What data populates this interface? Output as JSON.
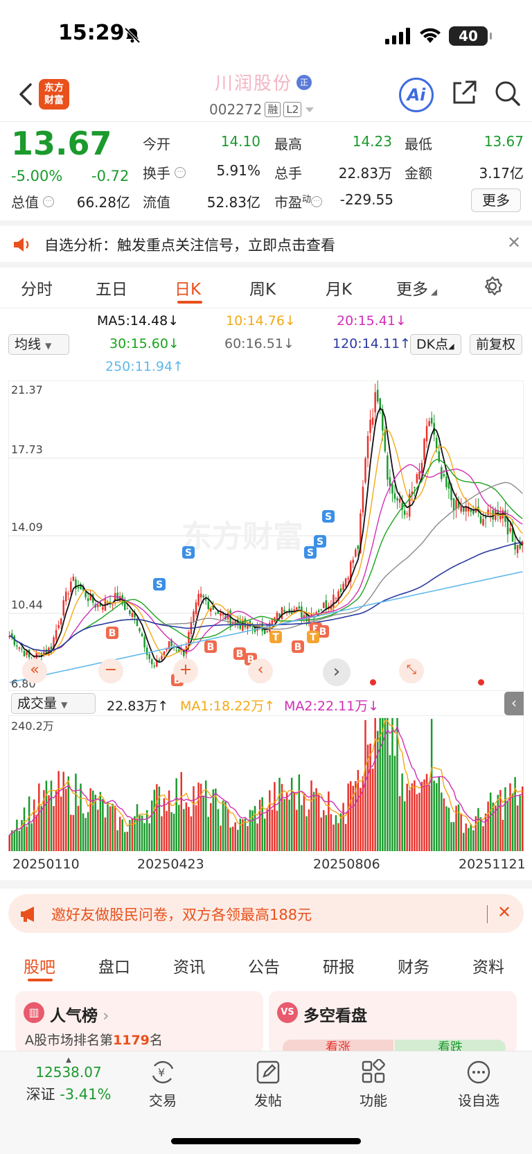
{
  "status_bar": {
    "time": "15:29",
    "battery": "40"
  },
  "header": {
    "stock_name": "川润股份",
    "tag": "正",
    "code": "002272",
    "badge_margin": "融",
    "badge_level": "L2",
    "logo_line1": "东方",
    "logo_line2": "财富",
    "ai_label": "Ai"
  },
  "quote": {
    "price": "13.67",
    "change_pct": "-5.00%",
    "change": "-0.72",
    "open_label": "今开",
    "open": "14.10",
    "high_label": "最高",
    "high": "14.23",
    "low_label": "最低",
    "low": "13.67",
    "turnover_label": "换手",
    "turnover": "5.91%",
    "volume_label": "总手",
    "volume": "22.83万",
    "amount_label": "金额",
    "amount": "3.17亿",
    "mktcap_label": "总值",
    "mktcap": "66.28亿",
    "float_label": "流值",
    "float": "52.83亿",
    "pe_label": "市盈",
    "pe_sup": "动",
    "pe": "-229.55",
    "more_label": "更多"
  },
  "alert": {
    "text": "自选分析：触发重点关注信号，立即点击查看"
  },
  "period_tabs": [
    "分时",
    "五日",
    "日K",
    "周K",
    "月K",
    "更多"
  ],
  "active_period": "日K",
  "ma_legend": {
    "select": "均线",
    "ma5": "MA5:14.48",
    "ma10": "10:14.76",
    "ma20": "20:15.41",
    "ma30": "30:15.60",
    "ma60": "60:16.51",
    "ma120": "120:14.11",
    "ma250": "250:11.94",
    "dk": "DK点",
    "fq": "前复权"
  },
  "colors": {
    "up": "#e8322c",
    "down": "#1b9a2d",
    "ma5": "#111111",
    "ma10": "#f4a915",
    "ma20": "#d12fb5",
    "ma30": "#19a31b",
    "ma60": "#8a8a8a",
    "ma120": "#2a3aa0",
    "ma250": "#5fb8ea"
  },
  "chart_data": {
    "type": "candlestick",
    "y_ticks": [
      "21.37",
      "17.73",
      "14.09",
      "10.44",
      "6.80"
    ],
    "ylim": [
      6.8,
      21.37
    ],
    "x_ticks": [
      "20250110",
      "20250423",
      "20250806",
      "20251121"
    ],
    "watermark": "东方财富",
    "signals_s": [
      "S",
      "S",
      "S",
      "S",
      "S"
    ],
    "signals_b": [
      "B",
      "B",
      "B",
      "B",
      "B",
      "B",
      "B",
      "B"
    ],
    "signals_t": [
      "T",
      "T"
    ]
  },
  "volume": {
    "select": "成交量",
    "value": "22.83万",
    "ma1": "MA1:18.22万",
    "ma2": "MA2:22.11万",
    "max_label": "240.2万"
  },
  "banner": {
    "text": "邀好友做股民问卷，双方各领最高188元"
  },
  "bottom_tabs": [
    "股吧",
    "盘口",
    "资讯",
    "公告",
    "研报",
    "财务",
    "资料"
  ],
  "cards": {
    "popular_title": "人气榜",
    "popular_sub_prefix": "A股市场排名第",
    "popular_rank": "1179",
    "popular_sub_suffix": "名",
    "vs_badge": "VS",
    "vs_title": "多空看盘",
    "bull": "看涨",
    "bear": "看跌"
  },
  "bottom_nav": {
    "index_value": "12538.07",
    "index_name": "深证",
    "index_change": "-3.41%",
    "trade": "交易",
    "post": "发帖",
    "func": "功能",
    "watch": "设自选"
  }
}
